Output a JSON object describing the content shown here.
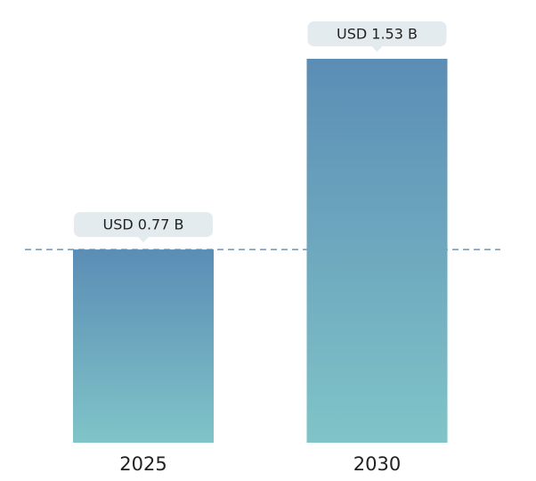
{
  "chart_data": {
    "type": "bar",
    "categories": [
      "2025",
      "2030"
    ],
    "values": [
      0.77,
      1.53
    ],
    "value_labels": [
      "USD 0.77 B",
      "USD 1.53 B"
    ],
    "color": "#5b8db5"
  }
}
